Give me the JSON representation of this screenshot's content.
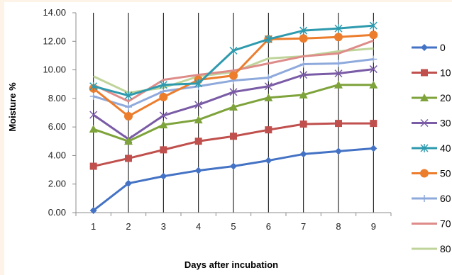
{
  "chart_data": {
    "type": "line",
    "xlabel": "Days after incubation",
    "ylabel": "Moisture %",
    "categories": [
      "1",
      "2",
      "3",
      "4",
      "5",
      "6",
      "7",
      "8",
      "9"
    ],
    "ylim": [
      0,
      14
    ],
    "yticks": [
      "0.00",
      "2.00",
      "4.00",
      "6.00",
      "8.00",
      "10.00",
      "12.00",
      "14.00"
    ],
    "grid": "vertical",
    "legend_position": "right",
    "series": [
      {
        "name": "0",
        "color": "#4472c4",
        "marker": "diamond",
        "values": [
          0.15,
          2.05,
          2.55,
          2.95,
          3.25,
          3.65,
          4.1,
          4.3,
          4.5
        ]
      },
      {
        "name": "10",
        "color": "#c0504d",
        "marker": "square",
        "values": [
          3.25,
          3.8,
          4.4,
          5.0,
          5.35,
          5.8,
          6.2,
          6.25,
          6.25
        ]
      },
      {
        "name": "20",
        "color": "#7ea33b",
        "marker": "triangle",
        "values": [
          5.85,
          5.0,
          6.15,
          6.5,
          7.4,
          8.05,
          8.25,
          8.95,
          8.95
        ]
      },
      {
        "name": "30",
        "color": "#7a5ba6",
        "marker": "x",
        "values": [
          6.85,
          5.15,
          6.8,
          7.55,
          8.45,
          8.85,
          9.65,
          9.75,
          10.05
        ]
      },
      {
        "name": "40",
        "color": "#2e9aae",
        "marker": "star",
        "values": [
          8.85,
          8.2,
          8.95,
          9.05,
          11.35,
          12.15,
          12.75,
          12.9,
          13.1
        ]
      },
      {
        "name": "50",
        "color": "#ec7d2d",
        "marker": "circle",
        "values": [
          8.7,
          6.75,
          8.1,
          9.3,
          9.6,
          12.15,
          12.2,
          12.3,
          12.45
        ]
      },
      {
        "name": "60",
        "color": "#8ea9db",
        "marker": "plus",
        "values": [
          8.15,
          7.4,
          8.5,
          8.85,
          9.25,
          9.45,
          10.4,
          10.45,
          10.75
        ]
      },
      {
        "name": "70",
        "color": "#de8c89",
        "marker": "none",
        "values": [
          8.95,
          7.8,
          9.3,
          9.65,
          9.95,
          10.45,
          10.95,
          11.15,
          12.05
        ]
      },
      {
        "name": "80",
        "color": "#bfd49a",
        "marker": "none",
        "values": [
          9.55,
          8.4,
          8.75,
          9.55,
          9.85,
          10.8,
          10.95,
          11.3,
          11.5
        ]
      }
    ]
  }
}
